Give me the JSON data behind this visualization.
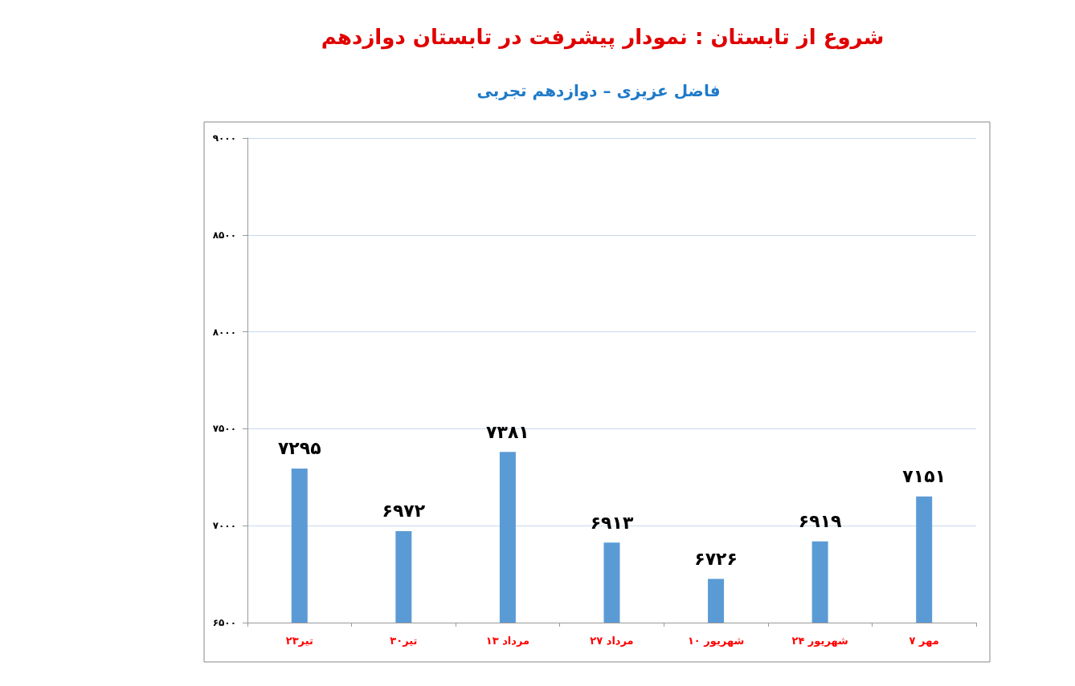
{
  "chart_data": {
    "type": "bar",
    "title": "شروع از تابستان : نمودار پیشرفت در تابستان دوازدهم",
    "subtitle": "فاضل عزیزی – دوازدهم تجربی",
    "categories": [
      "۲۳تیر",
      "۳۰تیر",
      "۱۳ مرداد",
      "۲۷ مرداد",
      "۱۰ شهریور",
      "۲۴ شهریور",
      "۷ مهر"
    ],
    "values": [
      7295,
      6972,
      7381,
      6913,
      6726,
      6919,
      7151
    ],
    "value_labels": [
      "۷۲۹۵",
      "۶۹۷۲",
      "۷۳۸۱",
      "۶۹۱۳",
      "۶۷۲۶",
      "۶۹۱۹",
      "۷۱۵۱"
    ],
    "color": "#5b9bd5",
    "ylim": [
      6500,
      9000
    ],
    "yticks": [
      {
        "value": 6500,
        "label": "۶۵۰۰"
      },
      {
        "value": 7000,
        "label": "۷۰۰۰"
      },
      {
        "value": 7500,
        "label": "۷۵۰۰"
      },
      {
        "value": 8000,
        "label": "۸۰۰۰"
      },
      {
        "value": 8500,
        "label": "۸۵۰۰"
      },
      {
        "value": 9000,
        "label": "۹۰۰۰"
      }
    ],
    "grid": "y"
  }
}
